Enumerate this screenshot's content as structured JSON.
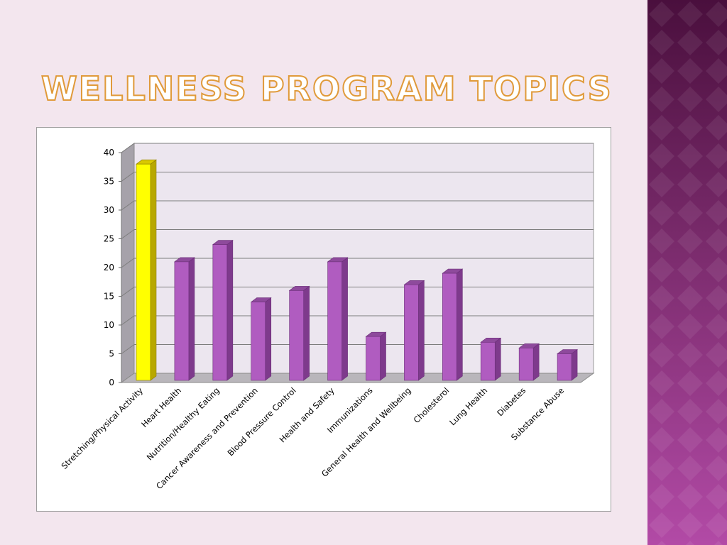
{
  "slide": {
    "title": "WELLNESS PROGRAM TOPICS"
  },
  "colors": {
    "background": "#f3e6ee",
    "title_fill": "#ffffff",
    "title_stroke": "#e09a3a",
    "bar_default": "#b05cc0",
    "bar_highlight": "#ffff00"
  },
  "chart_data": {
    "type": "bar",
    "style": "3d-column",
    "categories": [
      "Stretching/Physical Activity",
      "Heart Health",
      "Nutrition/Healthy Eating",
      "Cancer Awareness and Prevention",
      "Blood Pressure Control",
      "Health and Safety",
      "Immunizations",
      "General Health and Wellbeing",
      "Cholesterol",
      "Lung Health",
      "Diabetes",
      "Substance Abuse"
    ],
    "values": [
      38,
      21,
      24,
      14,
      16,
      21,
      8,
      17,
      19,
      7,
      6,
      5
    ],
    "highlight_index": 0,
    "ylim": [
      0,
      40
    ],
    "yticks": [
      0,
      5,
      10,
      15,
      20,
      25,
      30,
      35,
      40
    ],
    "grid": true,
    "legend": "none",
    "xlabel": "",
    "ylabel": ""
  }
}
